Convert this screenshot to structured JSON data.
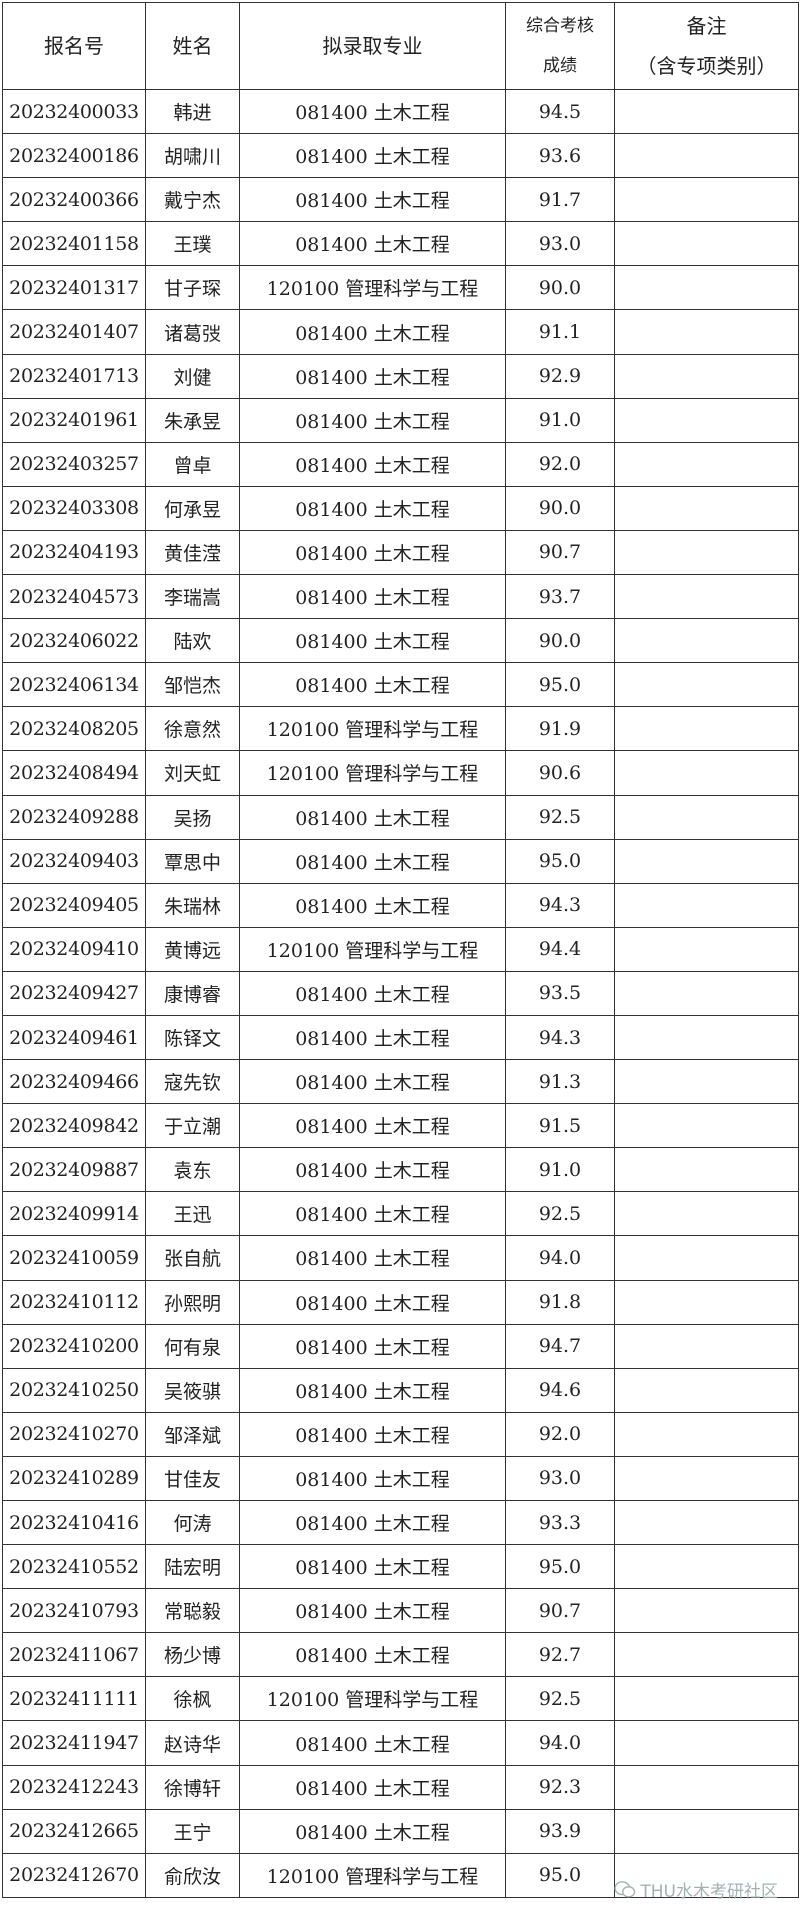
{
  "header": {
    "id": "报名号",
    "name": "姓名",
    "major": "拟录取专业",
    "score_line1": "综合考核",
    "score_line2": "成绩",
    "note_line1": "备注",
    "note_line2": "（含专项类别）"
  },
  "rows": [
    {
      "id": "20232400033",
      "name": "韩进",
      "major": "081400 土木工程",
      "score": "94.5",
      "note": ""
    },
    {
      "id": "20232400186",
      "name": "胡啸川",
      "major": "081400 土木工程",
      "score": "93.6",
      "note": ""
    },
    {
      "id": "20232400366",
      "name": "戴宁杰",
      "major": "081400 土木工程",
      "score": "91.7",
      "note": ""
    },
    {
      "id": "20232401158",
      "name": "王璞",
      "major": "081400 土木工程",
      "score": "93.0",
      "note": ""
    },
    {
      "id": "20232401317",
      "name": "甘子琛",
      "major": "120100 管理科学与工程",
      "score": "90.0",
      "note": ""
    },
    {
      "id": "20232401407",
      "name": "诸葛弢",
      "major": "081400 土木工程",
      "score": "91.1",
      "note": ""
    },
    {
      "id": "20232401713",
      "name": "刘健",
      "major": "081400 土木工程",
      "score": "92.9",
      "note": ""
    },
    {
      "id": "20232401961",
      "name": "朱承昱",
      "major": "081400 土木工程",
      "score": "91.0",
      "note": ""
    },
    {
      "id": "20232403257",
      "name": "曾卓",
      "major": "081400 土木工程",
      "score": "92.0",
      "note": ""
    },
    {
      "id": "20232403308",
      "name": "何承昱",
      "major": "081400 土木工程",
      "score": "90.0",
      "note": ""
    },
    {
      "id": "20232404193",
      "name": "黄佳滢",
      "major": "081400 土木工程",
      "score": "90.7",
      "note": ""
    },
    {
      "id": "20232404573",
      "name": "李瑞嵩",
      "major": "081400 土木工程",
      "score": "93.7",
      "note": ""
    },
    {
      "id": "20232406022",
      "name": "陆欢",
      "major": "081400 土木工程",
      "score": "90.0",
      "note": ""
    },
    {
      "id": "20232406134",
      "name": "邹恺杰",
      "major": "081400 土木工程",
      "score": "95.0",
      "note": ""
    },
    {
      "id": "20232408205",
      "name": "徐意然",
      "major": "120100 管理科学与工程",
      "score": "91.9",
      "note": ""
    },
    {
      "id": "20232408494",
      "name": "刘天虹",
      "major": "120100 管理科学与工程",
      "score": "90.6",
      "note": ""
    },
    {
      "id": "20232409288",
      "name": "吴扬",
      "major": "081400 土木工程",
      "score": "92.5",
      "note": ""
    },
    {
      "id": "20232409403",
      "name": "覃思中",
      "major": "081400 土木工程",
      "score": "95.0",
      "note": ""
    },
    {
      "id": "20232409405",
      "name": "朱瑞林",
      "major": "081400 土木工程",
      "score": "94.3",
      "note": ""
    },
    {
      "id": "20232409410",
      "name": "黄博远",
      "major": "120100 管理科学与工程",
      "score": "94.4",
      "note": ""
    },
    {
      "id": "20232409427",
      "name": "康博睿",
      "major": "081400 土木工程",
      "score": "93.5",
      "note": ""
    },
    {
      "id": "20232409461",
      "name": "陈铎文",
      "major": "081400 土木工程",
      "score": "94.3",
      "note": ""
    },
    {
      "id": "20232409466",
      "name": "寇先钦",
      "major": "081400 土木工程",
      "score": "91.3",
      "note": ""
    },
    {
      "id": "20232409842",
      "name": "于立潮",
      "major": "081400 土木工程",
      "score": "91.5",
      "note": ""
    },
    {
      "id": "20232409887",
      "name": "袁东",
      "major": "081400 土木工程",
      "score": "91.0",
      "note": ""
    },
    {
      "id": "20232409914",
      "name": "王迅",
      "major": "081400 土木工程",
      "score": "92.5",
      "note": ""
    },
    {
      "id": "20232410059",
      "name": "张自航",
      "major": "081400 土木工程",
      "score": "94.0",
      "note": ""
    },
    {
      "id": "20232410112",
      "name": "孙熙明",
      "major": "081400 土木工程",
      "score": "91.8",
      "note": ""
    },
    {
      "id": "20232410200",
      "name": "何有泉",
      "major": "081400 土木工程",
      "score": "94.7",
      "note": ""
    },
    {
      "id": "20232410250",
      "name": "吴筱骐",
      "major": "081400 土木工程",
      "score": "94.6",
      "note": ""
    },
    {
      "id": "20232410270",
      "name": "邹泽斌",
      "major": "081400 土木工程",
      "score": "92.0",
      "note": ""
    },
    {
      "id": "20232410289",
      "name": "甘佳友",
      "major": "081400 土木工程",
      "score": "93.0",
      "note": ""
    },
    {
      "id": "20232410416",
      "name": "何涛",
      "major": "081400 土木工程",
      "score": "93.3",
      "note": ""
    },
    {
      "id": "20232410552",
      "name": "陆宏明",
      "major": "081400 土木工程",
      "score": "95.0",
      "note": ""
    },
    {
      "id": "20232410793",
      "name": "常聪毅",
      "major": "081400 土木工程",
      "score": "90.7",
      "note": ""
    },
    {
      "id": "20232411067",
      "name": "杨少博",
      "major": "081400 土木工程",
      "score": "92.7",
      "note": ""
    },
    {
      "id": "20232411111",
      "name": "徐枫",
      "major": "120100 管理科学与工程",
      "score": "92.5",
      "note": ""
    },
    {
      "id": "20232411947",
      "name": "赵诗华",
      "major": "081400 土木工程",
      "score": "94.0",
      "note": ""
    },
    {
      "id": "20232412243",
      "name": "徐博轩",
      "major": "081400 土木工程",
      "score": "92.3",
      "note": ""
    },
    {
      "id": "20232412665",
      "name": "王宁",
      "major": "081400 土木工程",
      "score": "93.9",
      "note": ""
    },
    {
      "id": "20232412670",
      "name": "俞欣汝",
      "major": "120100 管理科学与工程",
      "score": "95.0",
      "note": ""
    }
  ],
  "watermark": {
    "text": "THU水木考研社区",
    "icon": "wechat-icon"
  }
}
